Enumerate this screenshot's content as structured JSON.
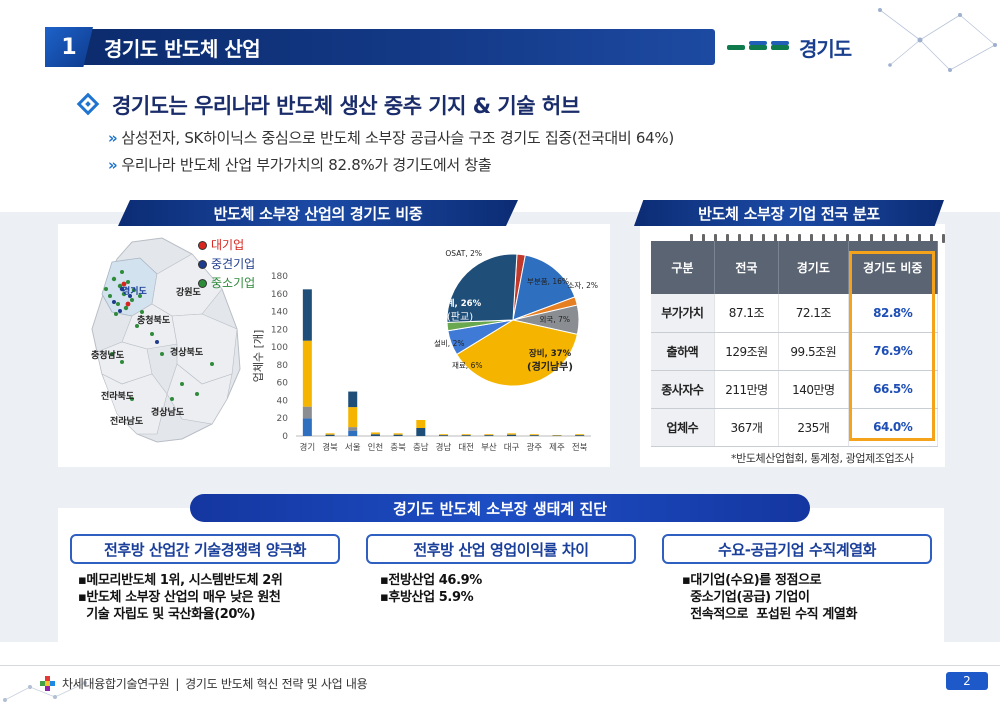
{
  "header": {
    "number": "1",
    "title": "경기도 반도체 산업",
    "logo_text": "경기도"
  },
  "headline": "경기도는 우리나라 반도체 생산 중추 기지 & 기술 허브",
  "bullets": [
    "삼성전자, SK하이닉스 중심으로 반도체 소부장 공급사슬 구조 경기도 집중(전국대비 64%)",
    "우리나라 반도체 산업 부가가치의 82.8%가 경기도에서 창출"
  ],
  "left_panel": {
    "title": "반도체 소부장 산업의 경기도 비중",
    "legend": [
      {
        "label": "대기업",
        "color": "#d7261e"
      },
      {
        "label": "중견기업",
        "color": "#1f3c8c"
      },
      {
        "label": "중소기업",
        "color": "#2e8b3a"
      }
    ],
    "legend_colors": [
      "#d7261e",
      "#1f3c8c",
      "#2e8b3a"
    ],
    "map_labels": [
      "경기도",
      "강원도",
      "충청북도",
      "충청남도",
      "경상북도",
      "전라북도",
      "경상남도",
      "전라남도"
    ]
  },
  "chart_data": [
    {
      "type": "bar",
      "ylabel": "업체수 [개]",
      "ylim": [
        0,
        180
      ],
      "yticks": [
        0,
        20,
        40,
        60,
        80,
        100,
        120,
        140,
        160,
        180
      ],
      "categories": [
        "경기",
        "경북",
        "서울",
        "인천",
        "충북",
        "충남",
        "경남",
        "대전",
        "부산",
        "대구",
        "광주",
        "제주",
        "전북"
      ],
      "values": [
        165,
        3,
        50,
        4,
        3,
        18,
        2,
        2,
        2,
        3,
        2,
        1,
        2
      ]
    },
    {
      "type": "pie",
      "slices": [
        {
          "label": "OSAT, 2%",
          "value": 2,
          "color": "#c0392b"
        },
        {
          "label": "부분품, 16%",
          "value": 16,
          "color": "#2e6fc0"
        },
        {
          "label": "소자, 2%",
          "value": 2,
          "color": "#e67e22"
        },
        {
          "label": "외국, 7%",
          "value": 7,
          "color": "#8a8d91"
        },
        {
          "label": "장비, 37%",
          "value": 37,
          "color": "#f4b400"
        },
        {
          "label": "재료, 6%",
          "value": 6,
          "color": "#3f7ad6"
        },
        {
          "label": "설비, 2%",
          "value": 2,
          "color": "#6aa84f"
        },
        {
          "label": "설계, 26%",
          "value": 26,
          "color": "#1f4e79"
        }
      ],
      "annotations": [
        "(판교)",
        "(경기남부)"
      ]
    }
  ],
  "right_panel": {
    "title": "반도체 소부장 기업 전국 분포",
    "columns": [
      "구분",
      "전국",
      "경기도",
      "경기도 비중"
    ],
    "rows": [
      [
        "부가가치",
        "87.1조",
        "72.1조",
        "82.8%"
      ],
      [
        "출하액",
        "129조원",
        "99.5조원",
        "76.9%"
      ],
      [
        "종사자수",
        "211만명",
        "140만명",
        "66.5%"
      ],
      [
        "업체수",
        "367개",
        "235개",
        "64.0%"
      ]
    ],
    "source": "*반도체산업협회, 통계청, 광업제조업조사"
  },
  "diagnosis": {
    "title": "경기도 반도체 소부장 생태계 진단",
    "cards": [
      {
        "title": "전후방 산업간 기술경쟁력 양극화",
        "lines": [
          "▪메모리반도체 1위, 시스템반도체 2위",
          "▪반도체 소부장 산업의 매우 낮은 원천",
          "  기술 자립도 및 국산화율(20%)"
        ]
      },
      {
        "title": "전후방 산업 영업이익률 차이",
        "lines": [
          "▪전방산업 46.9%",
          "▪후방산업 5.9%"
        ]
      },
      {
        "title": "수요-공급기업 수직계열화",
        "lines": [
          "▪대기업(수요)를 정점으로",
          "  중소기업(공급) 기업이",
          "  전속적으로  포섭된 수직 계열화"
        ]
      }
    ]
  },
  "footer": {
    "org": "차세대융합기술연구원",
    "separator": "|",
    "doc": "경기도 반도체 혁신 전략 및 사업 내용",
    "page": "2"
  }
}
